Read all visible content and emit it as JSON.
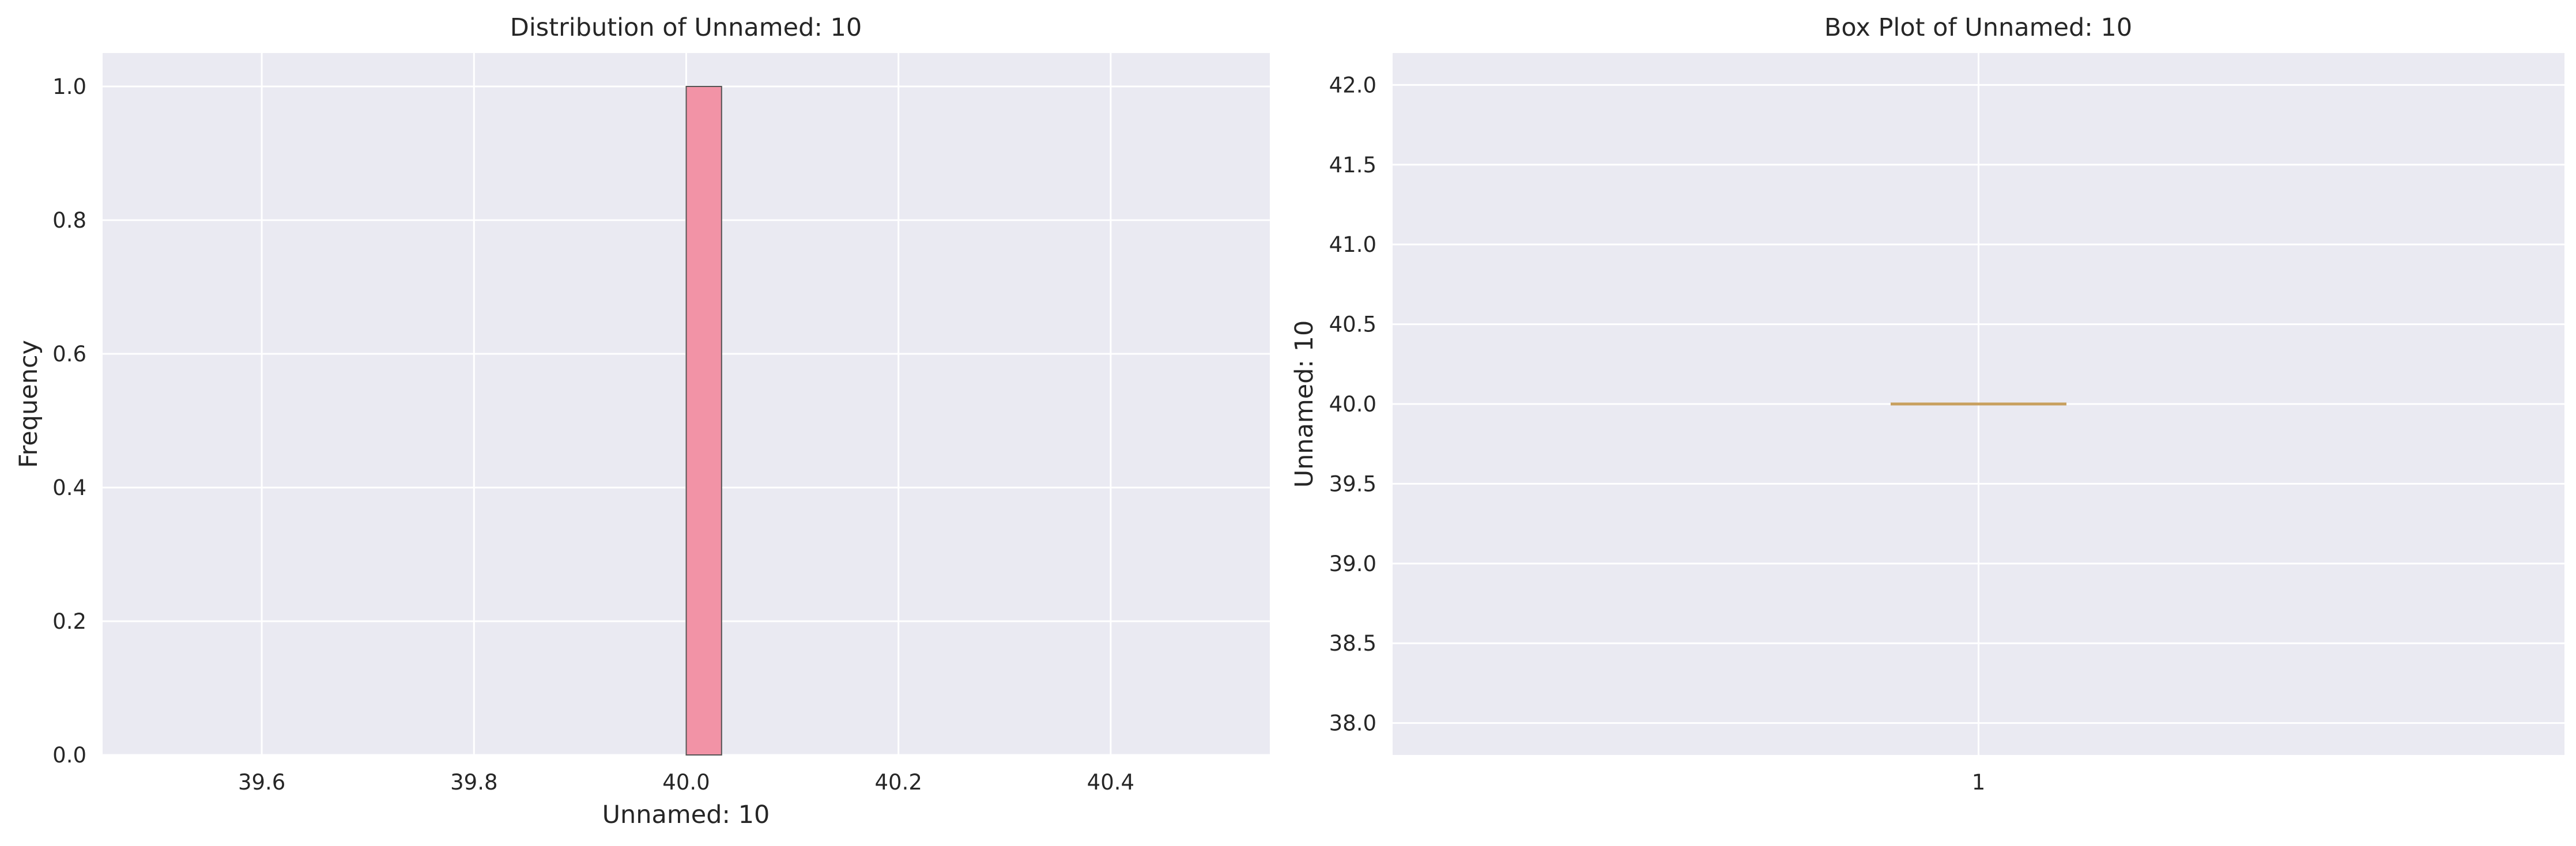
{
  "chart_data": [
    {
      "type": "bar",
      "title": "Distribution of Unnamed: 10",
      "xlabel": "Unnamed: 10",
      "ylabel": "Frequency",
      "xlim": [
        39.45,
        40.55
      ],
      "ylim": [
        0,
        1.05
      ],
      "xticks": [
        "39.6",
        "39.8",
        "40.0",
        "40.2",
        "40.4"
      ],
      "yticks": [
        "0.0",
        "0.2",
        "0.4",
        "0.6",
        "0.8",
        "1.0"
      ],
      "bins": [
        {
          "start": 40.0,
          "end": 40.0333,
          "value": 1
        }
      ],
      "grid": true,
      "colors": {
        "bar": "#f293a6",
        "bar_edge": "#555555",
        "background": "#eaeaf2",
        "grid": "#ffffff"
      }
    },
    {
      "type": "box",
      "title": "Box Plot of Unnamed: 10",
      "xlabel": "",
      "ylabel": "Unnamed: 10",
      "ylim": [
        37.8,
        42.2
      ],
      "xticks": [
        "1"
      ],
      "yticks": [
        "38.0",
        "38.5",
        "39.0",
        "39.5",
        "40.0",
        "40.5",
        "41.0",
        "41.5",
        "42.0"
      ],
      "boxes": [
        {
          "position": 1,
          "min": 40.0,
          "q1": 40.0,
          "median": 40.0,
          "q3": 40.0,
          "max": 40.0
        }
      ],
      "grid": true,
      "colors": {
        "median": "#c8a05f",
        "background": "#eaeaf2",
        "grid": "#ffffff"
      }
    }
  ]
}
